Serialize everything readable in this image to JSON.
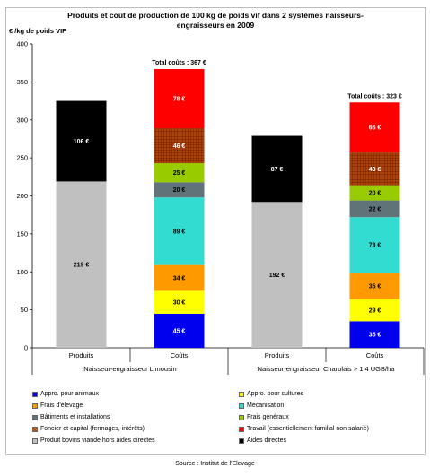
{
  "chart_data": {
    "type": "bar",
    "stacked": true,
    "title": "Produits et coût de production de 100 kg de poids vif dans 2 systèmes naisseurs-\nengraisseurs en 2009",
    "ylabel": "€ /kg de poids VIF",
    "ylim": [
      0,
      400
    ],
    "yticks": [
      0,
      50,
      100,
      150,
      200,
      250,
      300,
      350,
      400
    ],
    "grid": false,
    "legend_position": "bottom",
    "groups": [
      "Naisseur-engraisseur Limousin",
      "Naisseur-engraisseur Charolais > 1,4 UGB/ha"
    ],
    "bars": [
      {
        "label": "Produits",
        "group": 0,
        "total_label": "",
        "segments": [
          {
            "series": "prod",
            "value": 219,
            "label": "219 €"
          },
          {
            "series": "aides",
            "value": 106,
            "label": "106 €"
          }
        ]
      },
      {
        "label": "Coûts",
        "group": 0,
        "total_label": "Total coûts : 367 €",
        "segments": [
          {
            "series": "anim",
            "value": 45,
            "label": "45 €"
          },
          {
            "series": "cult",
            "value": 30,
            "label": "30 €"
          },
          {
            "series": "elev",
            "value": 34,
            "label": "34 €"
          },
          {
            "series": "meca",
            "value": 89,
            "label": "89 €"
          },
          {
            "series": "bat",
            "value": 20,
            "label": "20 €"
          },
          {
            "series": "gen",
            "value": 25,
            "label": "25 €"
          },
          {
            "series": "fonc",
            "value": 46,
            "label": "46 €"
          },
          {
            "series": "trav",
            "value": 78,
            "label": "78 €"
          }
        ]
      },
      {
        "label": "Produits",
        "group": 1,
        "total_label": "",
        "segments": [
          {
            "series": "prod",
            "value": 192,
            "label": "192 €"
          },
          {
            "series": "aides",
            "value": 87,
            "label": "87 €"
          }
        ]
      },
      {
        "label": "Coûts",
        "group": 1,
        "total_label": "Total coûts : 323 €",
        "segments": [
          {
            "series": "anim",
            "value": 35,
            "label": "35 €"
          },
          {
            "series": "cult",
            "value": 29,
            "label": "29 €"
          },
          {
            "series": "elev",
            "value": 35,
            "label": "35 €"
          },
          {
            "series": "meca",
            "value": 73,
            "label": "73 €"
          },
          {
            "series": "bat",
            "value": 22,
            "label": "22 €"
          },
          {
            "series": "gen",
            "value": 20,
            "label": "20 €"
          },
          {
            "series": "fonc",
            "value": 43,
            "label": "43 €"
          },
          {
            "series": "trav",
            "value": 66,
            "label": "66 €"
          }
        ]
      }
    ],
    "series": [
      {
        "key": "anim",
        "name": "Appro. pour animaux",
        "color": "#0000ee",
        "text_color": "#ffffff",
        "pattern": false
      },
      {
        "key": "cult",
        "name": "Appro. pour cultures",
        "color": "#ffff00",
        "text_color": "#000000",
        "pattern": false
      },
      {
        "key": "elev",
        "name": "Frais d'élevage",
        "color": "#ff9900",
        "text_color": "#000000",
        "pattern": false
      },
      {
        "key": "meca",
        "name": "Mécanisation",
        "color": "#33dcd0",
        "text_color": "#000000",
        "pattern": false
      },
      {
        "key": "bat",
        "name": "Bâtiments et installations",
        "color": "#5f7378",
        "text_color": "#000000",
        "pattern": false
      },
      {
        "key": "gen",
        "name": "Frais généraux",
        "color": "#99cc00",
        "text_color": "#000000",
        "pattern": false
      },
      {
        "key": "fonc",
        "name": "Foncier et capital (fermages, intérêts)",
        "color": "#993300",
        "text_color": "#ffffff",
        "pattern": true
      },
      {
        "key": "trav",
        "name": "Travail (essentiellement familial non salarié)",
        "color": "#ff0000",
        "text_color": "#ffffff",
        "pattern": false
      },
      {
        "key": "prod",
        "name": "Produit bovins viande hors aides directes",
        "color": "#c0c0c0",
        "text_color": "#000000",
        "pattern": false
      },
      {
        "key": "aides",
        "name": "Aides  directes",
        "color": "#000000",
        "text_color": "#ffffff",
        "pattern": false
      }
    ]
  },
  "source": "Source : Institut de l'Elevage"
}
